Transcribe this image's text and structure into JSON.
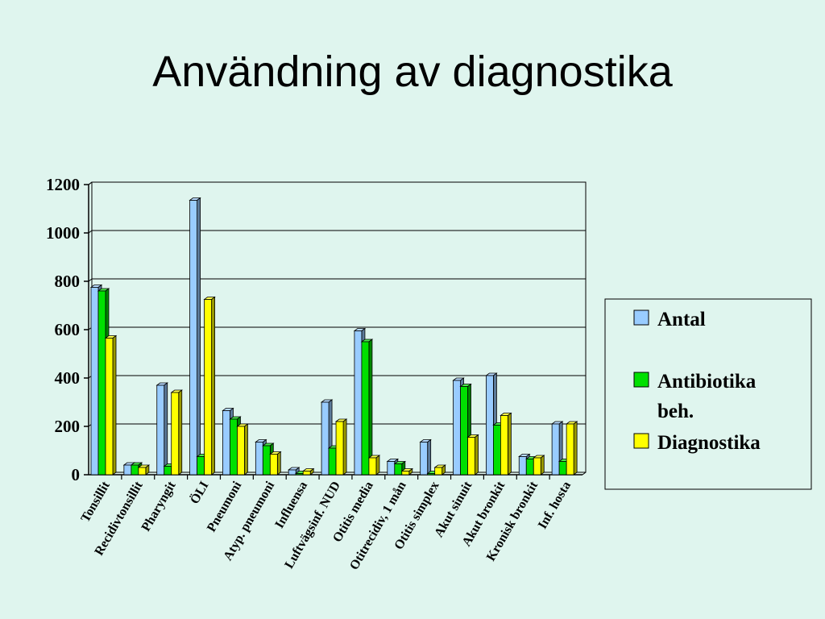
{
  "slide": {
    "title": "Användning av diagnostika"
  },
  "chart_data": {
    "type": "bar",
    "style": "3d-clustered",
    "title": "",
    "xlabel": "",
    "ylabel": "",
    "ylim": [
      0,
      1200
    ],
    "yticks": [
      0,
      200,
      400,
      600,
      800,
      1000,
      1200
    ],
    "grid": true,
    "legend_position": "right",
    "categories": [
      "Tonsillit",
      "Recidivtonsillit",
      "Pharyngit",
      "ÖLI",
      "Pneumoni",
      "Atyp. pneumoni",
      "Influensa",
      "Luftvägsinf. NUD",
      "Otitis media",
      "Otitrecidiv, 1 mån",
      "Otitis simplex",
      "Akut sinuit",
      "Akut bronkit",
      "Kronisk bronkit",
      "Inf. hosta"
    ],
    "series": [
      {
        "name": "Antal",
        "color": "#99ccff",
        "values": [
          775,
          40,
          370,
          1135,
          265,
          135,
          20,
          300,
          595,
          55,
          135,
          390,
          410,
          75,
          210
        ]
      },
      {
        "name": "Antibiotika beh.",
        "color": "#00e000",
        "values": [
          760,
          40,
          35,
          75,
          230,
          120,
          5,
          110,
          550,
          45,
          5,
          365,
          205,
          65,
          55
        ]
      },
      {
        "name": "Diagnostika",
        "color": "#ffff00",
        "values": [
          565,
          30,
          340,
          725,
          200,
          85,
          15,
          220,
          70,
          15,
          30,
          155,
          245,
          70,
          210
        ]
      }
    ],
    "legend_lines": [
      [
        "Antal"
      ],
      [
        "Antibiotika",
        "beh."
      ],
      [
        "Diagnostika"
      ]
    ]
  }
}
